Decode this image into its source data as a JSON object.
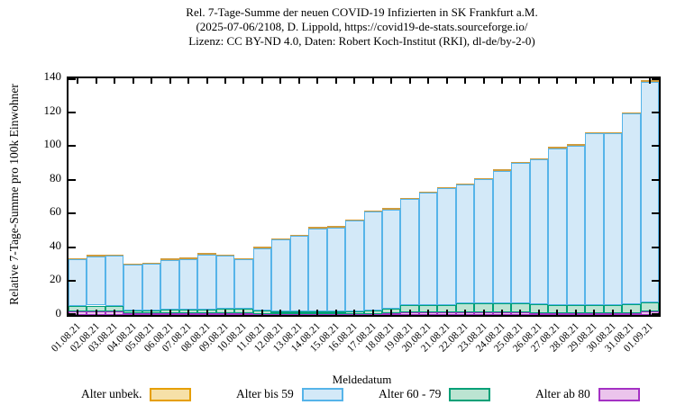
{
  "title": {
    "line1": "Rel. 7-Tage-Summe der neuen COVID-19 Infizierten in SK Frankfurt a.M.",
    "line2": "(2025-07-06/2108, D. Lippold, https://covid19-de-stats.sourceforge.io/",
    "line3": "Lizenz: CC BY-ND 4.0, Daten: Robert Koch-Institut (RKI), dl-de/by-2-0)"
  },
  "axes": {
    "y_label": "Relative 7-Tage-Summe pro 100k Einwohner",
    "x_label": "Meldedatum",
    "y_ticks": [
      0,
      20,
      40,
      60,
      80,
      100,
      120,
      140
    ],
    "ylim": [
      0,
      140
    ]
  },
  "legend": [
    {
      "label": "Alter unbek.",
      "border": "#E69F00",
      "fill": "#F6E0A8"
    },
    {
      "label": "Alter bis 59",
      "border": "#56B4E9",
      "fill": "#D3E9F8"
    },
    {
      "label": "Alter 60 - 79",
      "border": "#00A077",
      "fill": "#BCE4D2"
    },
    {
      "label": "Alter ab 80",
      "border": "#A431C4",
      "fill": "#EBC4EC"
    }
  ],
  "chart_data": {
    "type": "bar",
    "stacked": true,
    "title": "Rel. 7-Tage-Summe der neuen COVID-19 Infizierten in SK Frankfurt a.M.",
    "xlabel": "Meldedatum",
    "ylabel": "Relative 7-Tage-Summe pro 100k Einwohner",
    "ylim": [
      0,
      140
    ],
    "grid": false,
    "legend_position": "bottom",
    "categories": [
      "01.08.21",
      "02.08.21",
      "03.08.21",
      "04.08.21",
      "05.08.21",
      "06.08.21",
      "07.08.21",
      "08.08.21",
      "09.08.21",
      "10.08.21",
      "11.08.21",
      "12.08.21",
      "13.08.21",
      "14.08.21",
      "15.08.21",
      "16.08.21",
      "17.08.21",
      "18.08.21",
      "19.08.21",
      "20.08.21",
      "21.08.21",
      "22.08.21",
      "23.08.21",
      "24.08.21",
      "25.08.21",
      "26.08.21",
      "27.08.21",
      "28.08.21",
      "29.08.21",
      "30.08.21",
      "31.08.21",
      "01.09.21"
    ],
    "series": [
      {
        "name": "Alter ab 80",
        "values": [
          2.1,
          2.1,
          2.1,
          0.9,
          0.9,
          0.9,
          0.9,
          0.9,
          0.9,
          0.9,
          0.7,
          0.6,
          0.6,
          0.6,
          0.6,
          0.6,
          0.7,
          0.9,
          1.7,
          1.7,
          1.7,
          1.6,
          1.6,
          1.6,
          1.6,
          1.2,
          1.0,
          1.0,
          1.0,
          1.0,
          1.0,
          2.4
        ]
      },
      {
        "name": "Alter 60 - 79",
        "values": [
          3.2,
          3.5,
          3.2,
          1.7,
          1.7,
          2.2,
          2.2,
          2.2,
          2.6,
          2.6,
          2.1,
          1.3,
          1.3,
          1.3,
          1.3,
          1.5,
          2.2,
          3.1,
          4.4,
          4.4,
          4.4,
          5.5,
          5.5,
          5.5,
          5.5,
          5.0,
          4.8,
          4.8,
          5.0,
          5.0,
          5.2,
          5.0
        ]
      },
      {
        "name": "Alter bis 59",
        "values": [
          27.7,
          29.2,
          29.8,
          27.1,
          27.6,
          29.6,
          30.1,
          32.7,
          31.4,
          29.5,
          36.8,
          42.7,
          44.8,
          49.3,
          50.0,
          53.6,
          58.2,
          58.4,
          62.4,
          66.1,
          69.0,
          69.9,
          73.3,
          78.2,
          82.9,
          85.8,
          92.9,
          94.4,
          101.5,
          101.5,
          112.8,
          130.6
        ]
      },
      {
        "name": "Alter unbek.",
        "values": [
          0,
          0,
          0,
          0,
          0,
          0,
          0,
          0,
          0,
          0,
          0,
          0,
          0,
          0,
          0,
          0,
          0,
          0,
          0,
          0,
          0,
          0,
          0,
          0,
          0,
          0,
          0,
          0,
          0,
          0,
          0,
          0
        ]
      }
    ],
    "totals": [
      33.0,
      34.8,
      35.1,
      29.7,
      30.2,
      32.7,
      33.2,
      35.8,
      34.9,
      33.0,
      39.6,
      44.6,
      46.7,
      51.2,
      51.9,
      55.7,
      61.1,
      62.4,
      68.5,
      72.2,
      75.1,
      77.0,
      80.4,
      85.3,
      90.0,
      92.0,
      98.7,
      100.2,
      107.5,
      107.5,
      119.0,
      138.0
    ]
  }
}
